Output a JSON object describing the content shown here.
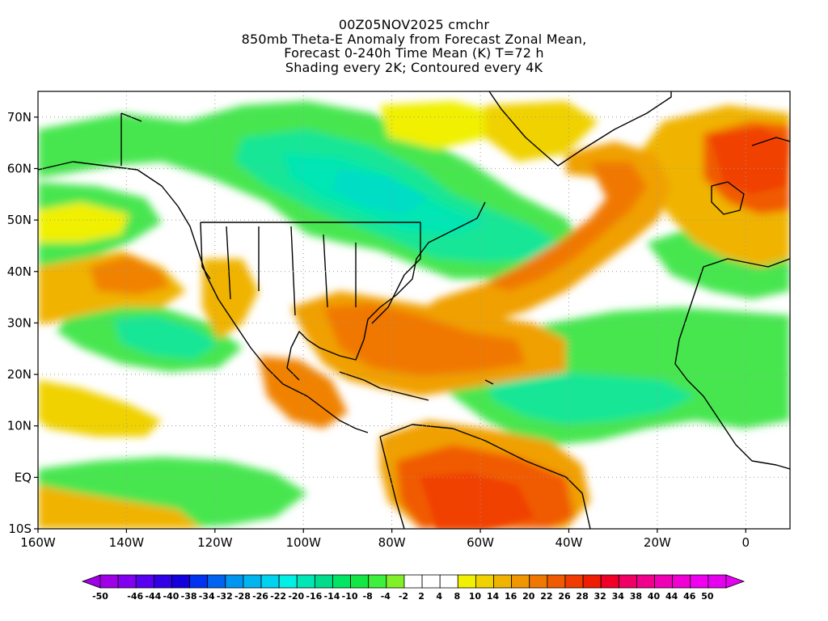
{
  "header": {
    "line1": "00Z05NOV2025 cmchr",
    "line2": "850mb Theta-E Anomaly from Forecast Zonal Mean,",
    "line3": "Forecast 0-240h Time Mean (K) T=72 h",
    "line4": "Shading every 2K; Contoured every 4K"
  },
  "map": {
    "projection": "cylindrical equidistant",
    "lon_range": [
      -160,
      10
    ],
    "lat_range": [
      -10,
      75
    ],
    "lat_labels": [
      "70N",
      "60N",
      "50N",
      "40N",
      "30N",
      "20N",
      "10N",
      "EQ",
      "10S"
    ],
    "lat_values": [
      70,
      60,
      50,
      40,
      30,
      20,
      10,
      0,
      -10
    ],
    "lon_labels": [
      "160W",
      "140W",
      "120W",
      "100W",
      "80W",
      "60W",
      "40W",
      "20W",
      "0"
    ],
    "lon_values": [
      -160,
      -140,
      -120,
      -100,
      -80,
      -60,
      -40,
      -20,
      0
    ],
    "features": [
      {
        "name": "North Atlantic warm anomaly band",
        "color": "#f08200"
      },
      {
        "name": "Northeast Pacific warm anomaly",
        "color": "#f0a000"
      },
      {
        "name": "Canadian cold anomaly",
        "color": "#00dcaa"
      },
      {
        "name": "Caribbean warm anomaly",
        "color": "#f08200"
      },
      {
        "name": "Northern Europe warm anomaly",
        "color": "#f03c00"
      },
      {
        "name": "South America warm anomaly",
        "color": "#f06400"
      }
    ]
  },
  "colorbar": {
    "labels": [
      "-50",
      "-46",
      "-44",
      "-40",
      "-38",
      "-34",
      "-32",
      "-28",
      "-26",
      "-22",
      "-20",
      "-16",
      "-14",
      "-10",
      "-8",
      "-4",
      "-2",
      "2",
      "4",
      "8",
      "10",
      "14",
      "16",
      "20",
      "22",
      "26",
      "28",
      "32",
      "34",
      "38",
      "40",
      "44",
      "46",
      "50"
    ],
    "colors": [
      "#a000e6",
      "#8200f0",
      "#5a00f0",
      "#3200e6",
      "#1400dc",
      "#0032f0",
      "#0064f0",
      "#0096f0",
      "#00b4f0",
      "#00d2f0",
      "#00f0e6",
      "#00e6b4",
      "#00dc8c",
      "#00e664",
      "#14e646",
      "#3cf03c",
      "#82f028",
      "#ffffff",
      "#ffffff",
      "#ffffff",
      "#f0f000",
      "#f0d200",
      "#f0b400",
      "#f09600",
      "#f07800",
      "#f05a00",
      "#f03c00",
      "#f01e00",
      "#f00028",
      "#f00064",
      "#f0008c",
      "#f000b4",
      "#f000d2",
      "#f000f0",
      "#e600f0"
    ],
    "left_arrow_color": "#a000e6",
    "right_arrow_color": "#e600f0"
  }
}
